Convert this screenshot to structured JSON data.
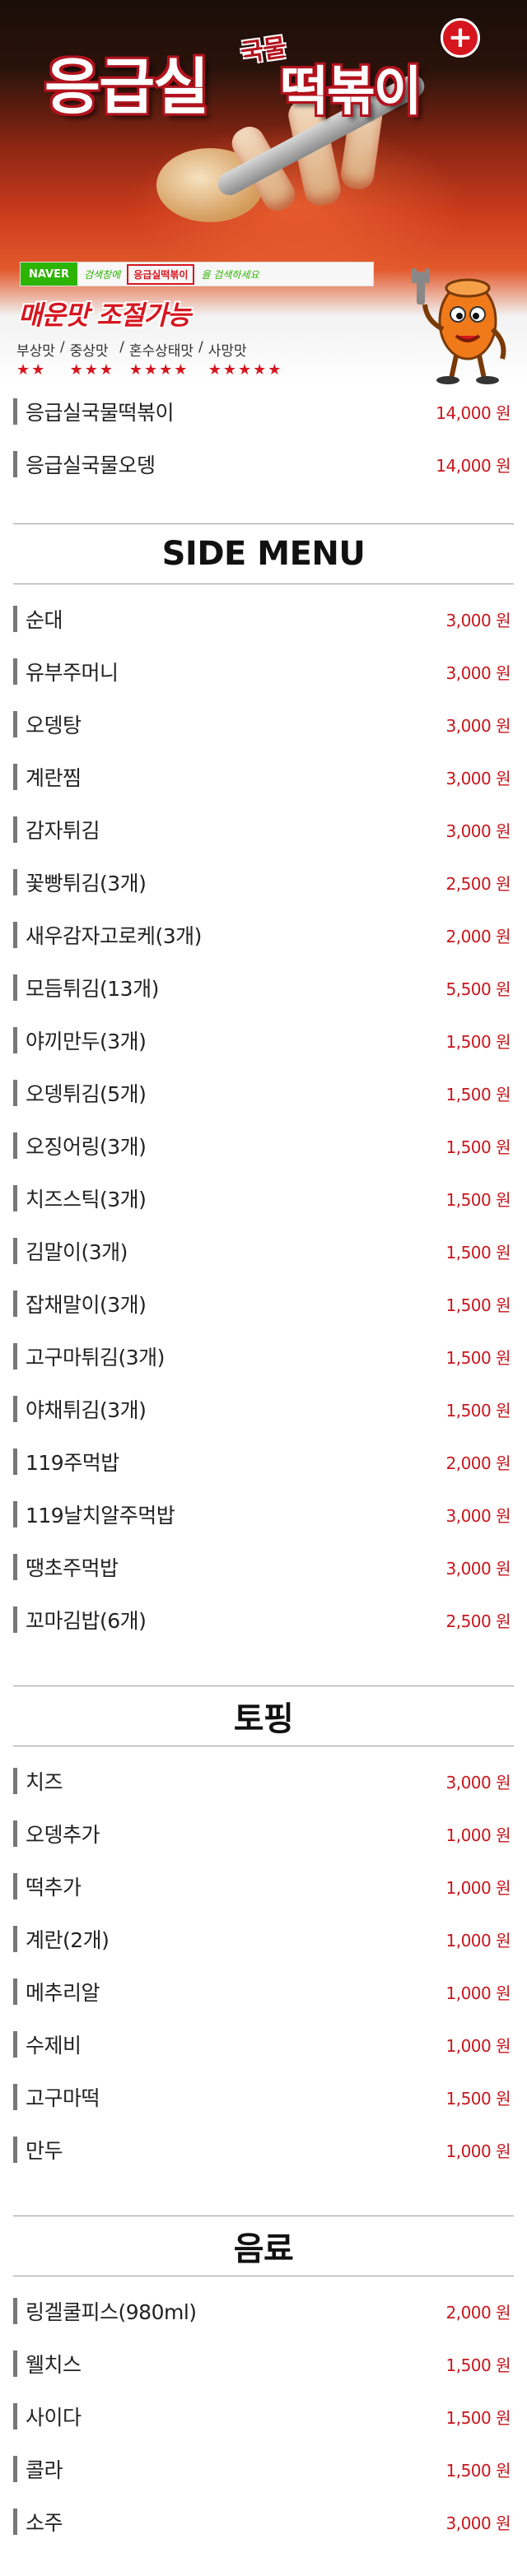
{
  "hero": {
    "brand_main": "응급실",
    "brand_sub": "국물",
    "brand_dish": "떡볶이",
    "plus_symbol": "+",
    "naver_logo": "NAVER",
    "naver_text_left": "검색창에",
    "naver_search_term": "응급실떡볶이",
    "naver_text_right": "을 검색하세요",
    "spicy_title": "매운맛 조절가능",
    "spice_levels": [
      {
        "name": "부상맛",
        "stars": "★★"
      },
      {
        "name": "중상맛",
        "stars": "★★★"
      },
      {
        "name": "혼수상태맛",
        "stars": "★★★★"
      },
      {
        "name": "사망맛",
        "stars": "★★★★★"
      }
    ],
    "level_separator": "/"
  },
  "main_menu": [
    {
      "name": "응급실국물떡볶이",
      "price": "14,000 원"
    },
    {
      "name": "응급실국물오뎅",
      "price": "14,000 원"
    }
  ],
  "sections": {
    "side": "SIDE MENU",
    "topping": "토핑",
    "drink": "음료"
  },
  "side_menu": [
    {
      "name": "순대",
      "price": "3,000 원"
    },
    {
      "name": "유부주머니",
      "price": "3,000 원"
    },
    {
      "name": "오뎅탕",
      "price": "3,000 원"
    },
    {
      "name": "계란찜",
      "price": "3,000 원"
    },
    {
      "name": "감자튀김",
      "price": "3,000 원"
    },
    {
      "name": "꽃빵튀김(3개)",
      "price": "2,500 원"
    },
    {
      "name": "새우감자고로케(3개)",
      "price": "2,000 원"
    },
    {
      "name": "모듬튀김(13개)",
      "price": "5,500 원"
    },
    {
      "name": "야끼만두(3개)",
      "price": "1,500 원"
    },
    {
      "name": "오뎅튀김(5개)",
      "price": "1,500 원"
    },
    {
      "name": "오징어링(3개)",
      "price": "1,500 원"
    },
    {
      "name": "치즈스틱(3개)",
      "price": "1,500 원"
    },
    {
      "name": "김말이(3개)",
      "price": "1,500 원"
    },
    {
      "name": "잡채말이(3개)",
      "price": "1,500 원"
    },
    {
      "name": "고구마튀김(3개)",
      "price": "1,500 원"
    },
    {
      "name": "야채튀김(3개)",
      "price": "1,500 원"
    },
    {
      "name": "119주먹밥",
      "price": "2,000 원"
    },
    {
      "name": "119날치알주먹밥",
      "price": "3,000 원"
    },
    {
      "name": "땡초주먹밥",
      "price": "3,000 원"
    },
    {
      "name": "꼬마김밥(6개)",
      "price": "2,500 원"
    }
  ],
  "topping_menu": [
    {
      "name": "치즈",
      "price": "3,000 원"
    },
    {
      "name": "오뎅추가",
      "price": "1,000 원"
    },
    {
      "name": "떡추가",
      "price": "1,000 원"
    },
    {
      "name": "계란(2개)",
      "price": "1,000 원"
    },
    {
      "name": "메추리알",
      "price": "1,000 원"
    },
    {
      "name": "수제비",
      "price": "1,000 원"
    },
    {
      "name": "고구마떡",
      "price": "1,500 원"
    },
    {
      "name": "만두",
      "price": "1,000 원"
    }
  ],
  "drink_menu": [
    {
      "name": "링겔쿨피스(980ml)",
      "price": "2,000 원"
    },
    {
      "name": "웰치스",
      "price": "1,500 원"
    },
    {
      "name": "사이다",
      "price": "1,500 원"
    },
    {
      "name": "콜라",
      "price": "1,500 원"
    },
    {
      "name": "소주",
      "price": "3,000 원"
    }
  ],
  "colors": {
    "price": "#c8161d",
    "accent": "#d6161f",
    "bar": "#777777",
    "naver": "#2db400"
  }
}
